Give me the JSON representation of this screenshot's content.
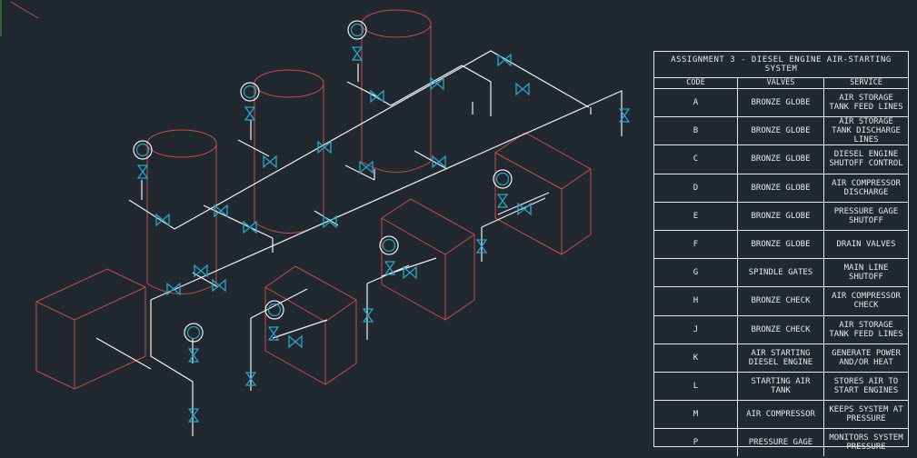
{
  "legend": {
    "title": "ASSIGNMENT 3 - DIESEL ENGINE AIR-STARTING\nSYSTEM",
    "headers": {
      "code": "CODE",
      "valves": "VALVES",
      "service": "SERVICE"
    },
    "rows": [
      {
        "code": "A",
        "valve": "BRONZE GLOBE",
        "service": "AIR STORAGE\nTANK FEED LINES"
      },
      {
        "code": "B",
        "valve": "BRONZE GLOBE",
        "service": "AIR STORAGE\nTANK DISCHARGE\nLINES"
      },
      {
        "code": "C",
        "valve": "BRONZE GLOBE",
        "service": "DIESEL ENGINE\nSHUTOFF CONTROL"
      },
      {
        "code": "D",
        "valve": "BRONZE GLOBE",
        "service": "AIR COMPRESSOR\nDISCHARGE"
      },
      {
        "code": "E",
        "valve": "BRONZE GLOBE",
        "service": "PRESSURE GAGE\nSHUTOFF"
      },
      {
        "code": "F",
        "valve": "BRONZE GLOBE",
        "service": "DRAIN VALVES"
      },
      {
        "code": "G",
        "valve": "SPINDLE GATES",
        "service": "MAIN LINE\nSHUTOFF"
      },
      {
        "code": "H",
        "valve": "BRONZE CHECK",
        "service": "AIR COMPRESSOR\nCHECK"
      },
      {
        "code": "J",
        "valve": "BRONZE CHECK",
        "service": "AIR STORAGE\nTANK FEED LINES"
      },
      {
        "code": "K",
        "valve": "AIR STARTING\nDIESEL ENGINE",
        "service": "GENERATE POWER\nAND/OR HEAT"
      },
      {
        "code": "L",
        "valve": "STARTING AIR\nTANK",
        "service": "STORES AIR TO\nSTART ENGINES"
      },
      {
        "code": "M",
        "valve": "AIR COMPRESSOR",
        "service": "KEEPS SYSTEM AT\nPRESSURE"
      },
      {
        "code": "P",
        "valve": "PRESSURE GAGE",
        "service": "MONITORS SYSTEM\nPRESSURE"
      }
    ]
  },
  "colors": {
    "background": "#212830",
    "equipment": "#c0504a",
    "pipe": "#f2f2f2",
    "valve": "#2aa6c8",
    "accent_line": "#c0504a"
  }
}
